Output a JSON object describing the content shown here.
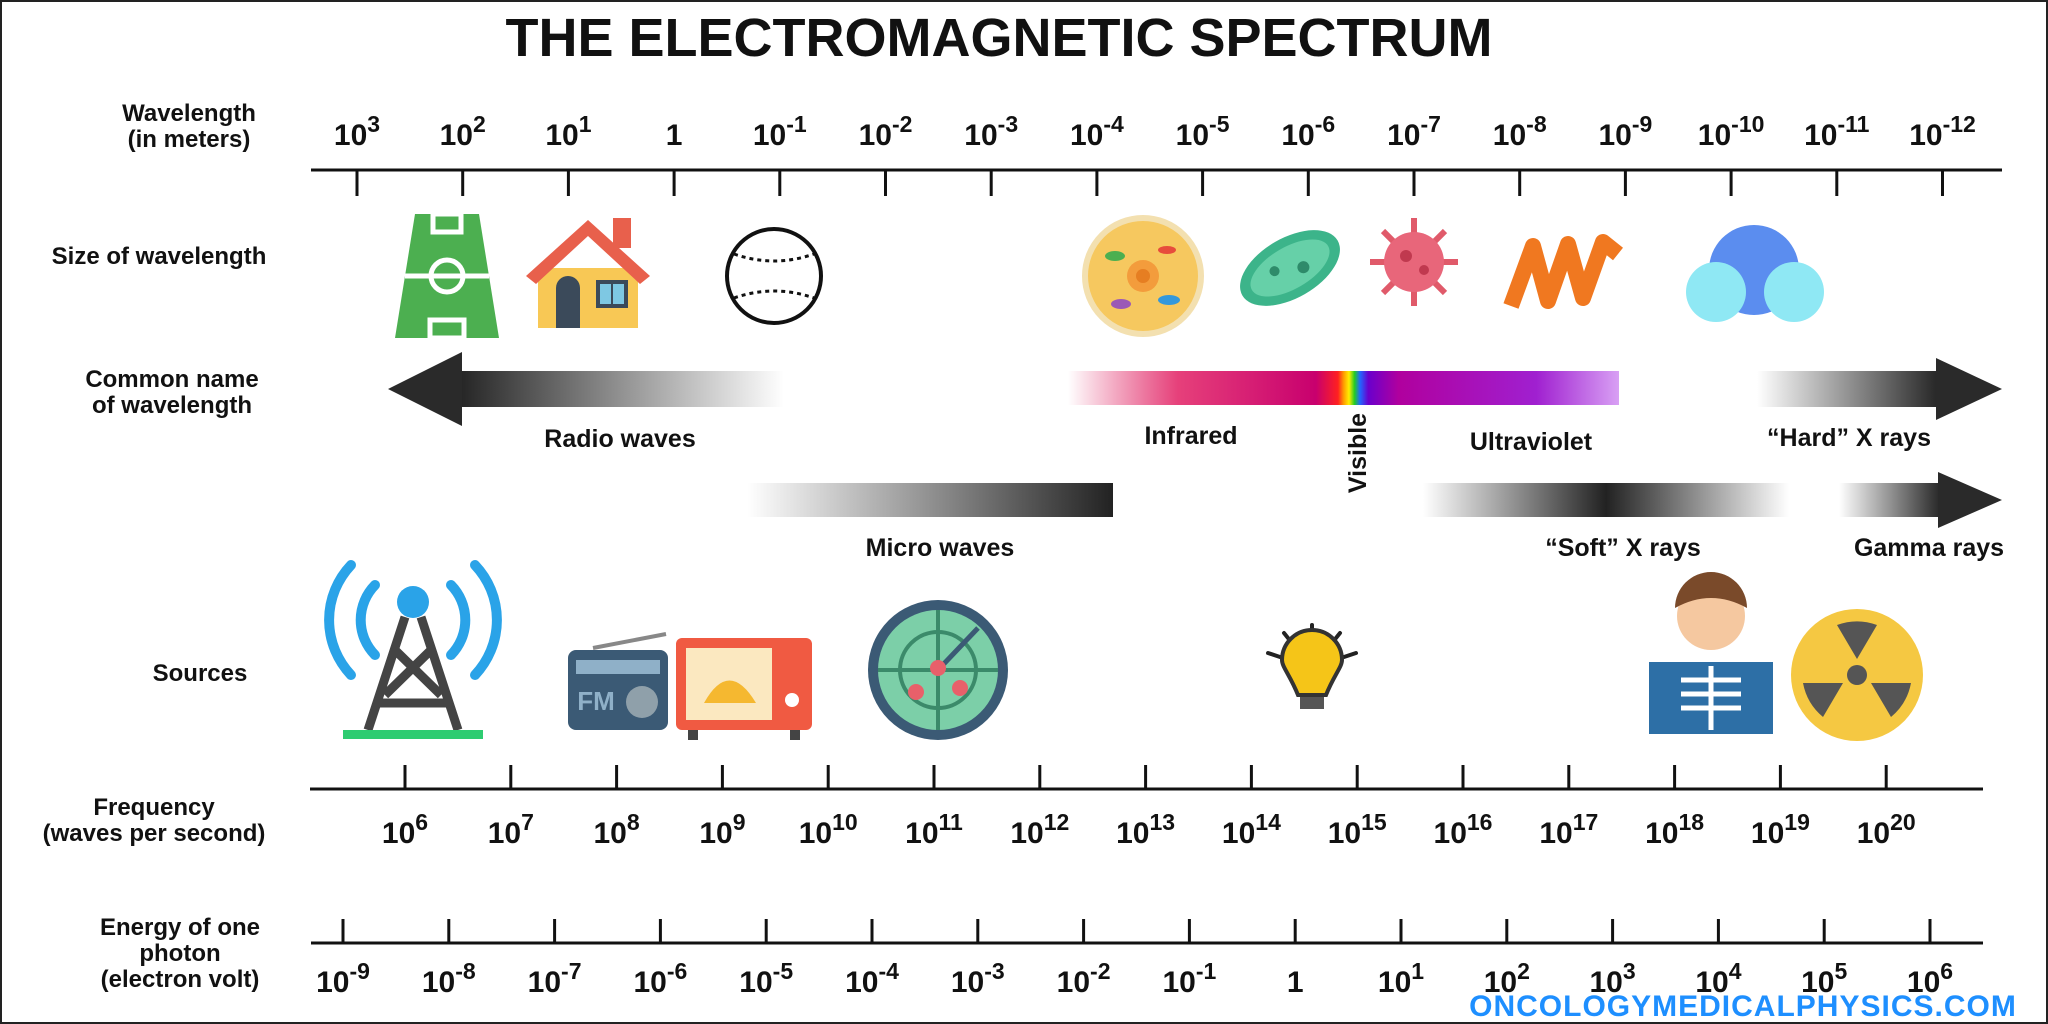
{
  "title": "THE ELECTROMAGNETIC SPECTRUM",
  "rows": {
    "wavelength": [
      "Wavelength",
      "(in meters)"
    ],
    "size": [
      "Size of wavelength"
    ],
    "common_name": [
      "Common name",
      "of wavelength"
    ],
    "sources": [
      "Sources"
    ],
    "frequency": [
      "Frequency",
      "(waves per second)"
    ],
    "energy": [
      "Energy of one",
      "photon",
      "(electron volt)"
    ]
  },
  "wavelength_ticks": [
    {
      "base": "10",
      "exp": "3"
    },
    {
      "base": "10",
      "exp": "2"
    },
    {
      "base": "10",
      "exp": "1"
    },
    {
      "base": "1"
    },
    {
      "base": "10",
      "exp": "-1"
    },
    {
      "base": "10",
      "exp": "-2"
    },
    {
      "base": "10",
      "exp": "-3"
    },
    {
      "base": "10",
      "exp": "-4"
    },
    {
      "base": "10",
      "exp": "-5"
    },
    {
      "base": "10",
      "exp": "-6"
    },
    {
      "base": "10",
      "exp": "-7"
    },
    {
      "base": "10",
      "exp": "-8"
    },
    {
      "base": "10",
      "exp": "-9"
    },
    {
      "base": "10",
      "exp": "-10"
    },
    {
      "base": "10",
      "exp": "-11"
    },
    {
      "base": "10",
      "exp": "-12"
    }
  ],
  "frequency_ticks": [
    {
      "base": "10",
      "exp": "6"
    },
    {
      "base": "10",
      "exp": "7"
    },
    {
      "base": "10",
      "exp": "8"
    },
    {
      "base": "10",
      "exp": "9"
    },
    {
      "base": "10",
      "exp": "10"
    },
    {
      "base": "10",
      "exp": "11"
    },
    {
      "base": "10",
      "exp": "12"
    },
    {
      "base": "10",
      "exp": "13"
    },
    {
      "base": "10",
      "exp": "14"
    },
    {
      "base": "10",
      "exp": "15"
    },
    {
      "base": "10",
      "exp": "16"
    },
    {
      "base": "10",
      "exp": "17"
    },
    {
      "base": "10",
      "exp": "18"
    },
    {
      "base": "10",
      "exp": "19"
    },
    {
      "base": "10",
      "exp": "20"
    }
  ],
  "energy_ticks": [
    {
      "base": "10",
      "exp": "-9"
    },
    {
      "base": "10",
      "exp": "-8"
    },
    {
      "base": "10",
      "exp": "-7"
    },
    {
      "base": "10",
      "exp": "-6"
    },
    {
      "base": "10",
      "exp": "-5"
    },
    {
      "base": "10",
      "exp": "-4"
    },
    {
      "base": "10",
      "exp": "-3"
    },
    {
      "base": "10",
      "exp": "-2"
    },
    {
      "base": "10",
      "exp": "-1"
    },
    {
      "base": "1"
    },
    {
      "base": "10",
      "exp": "1"
    },
    {
      "base": "10",
      "exp": "2"
    },
    {
      "base": "10",
      "exp": "3"
    },
    {
      "base": "10",
      "exp": "4"
    },
    {
      "base": "10",
      "exp": "5"
    },
    {
      "base": "10",
      "exp": "6"
    }
  ],
  "bands": {
    "radio": "Radio waves",
    "infrared": "Infrared",
    "visible": "Visible",
    "ultraviolet": "Ultraviolet",
    "hard_xray": "“Hard” X rays",
    "microwave": "Micro waves",
    "soft_xray": "“Soft” X rays",
    "gamma": "Gamma rays"
  },
  "watermark": "ONCOLOGYMEDICALPHYSICS.COM"
}
